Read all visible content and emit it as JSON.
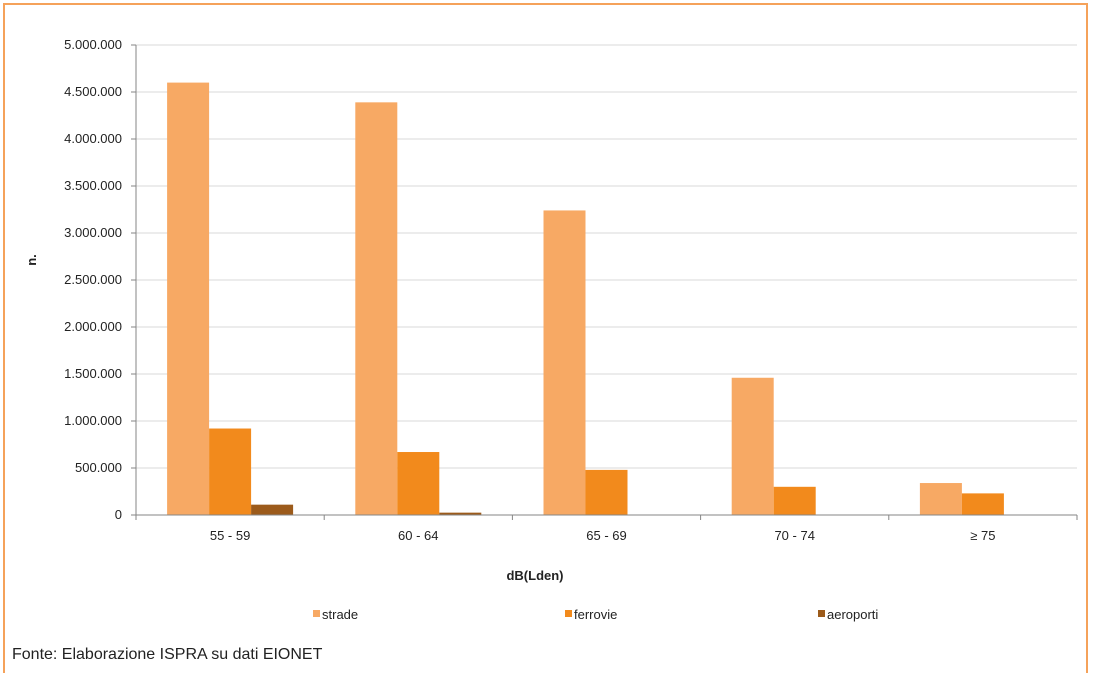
{
  "chart_data": {
    "type": "bar",
    "categories": [
      "55 - 59",
      "60 - 64",
      "65 - 69",
      "70 - 74",
      "≥ 75"
    ],
    "series": [
      {
        "name": "strade",
        "values": [
          4600000,
          4390000,
          3240000,
          1460000,
          340000
        ],
        "color": "#f7a964"
      },
      {
        "name": "ferrovie",
        "values": [
          920000,
          670000,
          480000,
          300000,
          230000
        ],
        "color": "#f28a1c"
      },
      {
        "name": "aeroporti",
        "values": [
          110000,
          25000,
          5000,
          3000,
          0
        ],
        "color": "#9c5b1b"
      }
    ],
    "xlabel": "dB(Lden)",
    "ylabel": "n.",
    "ylim": [
      0,
      5000000
    ],
    "yticks": [
      0,
      500000,
      1000000,
      1500000,
      2000000,
      2500000,
      3000000,
      3500000,
      4000000,
      4500000,
      5000000
    ],
    "ytick_labels": [
      "0",
      "500.000",
      "1.000.000",
      "1.500.000",
      "2.000.000",
      "2.500.000",
      "3.000.000",
      "3.500.000",
      "4.000.000",
      "4.500.000",
      "5.000.000"
    ],
    "grid": true,
    "legend_position": "bottom"
  },
  "source_note": "Fonte: Elaborazione ISPRA su dati EIONET",
  "colors": {
    "frame": "#f5a25a",
    "grid": "#d9d9d9",
    "axis": "#868686"
  }
}
